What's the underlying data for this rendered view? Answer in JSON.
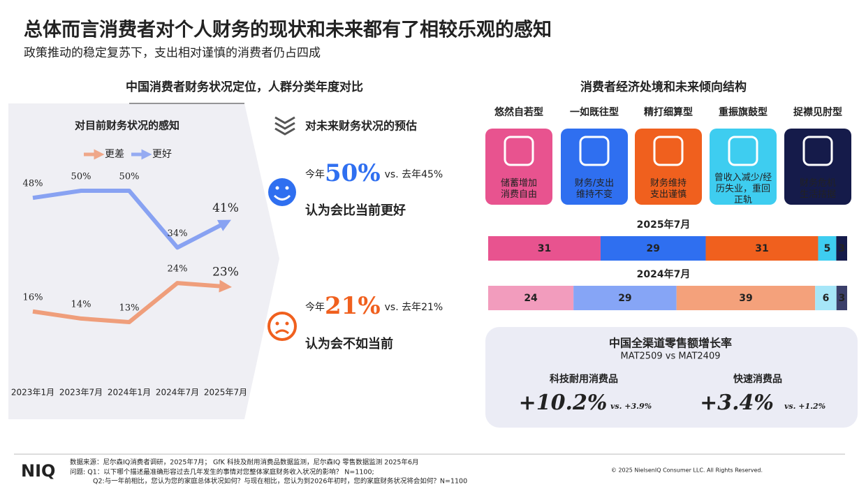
{
  "header": {
    "title": "总体而言消费者对个人财务的现状和未来都有了相较乐观的感知",
    "subtitle": "政策推动的稳定复苏下，支出相对谨慎的消费者仍占四成"
  },
  "left_title": "中国消费者财务状况定位，人群分类年度对比",
  "chart_data": [
    {
      "type": "line",
      "title": "对目前财务状况的感知",
      "categories": [
        "2023年1月",
        "2023年7月",
        "2024年1月",
        "2024年7月",
        "2025年7月"
      ],
      "series": [
        {
          "name": "更差",
          "color": "#f08a5d",
          "values": [
            16,
            14,
            13,
            24,
            23
          ],
          "value_labels": [
            "16%",
            "14%",
            "13%",
            "24%",
            "23%"
          ]
        },
        {
          "name": "更好",
          "color": "#6f8ff2",
          "values": [
            48,
            50,
            50,
            34,
            41
          ],
          "value_labels": [
            "48%",
            "50%",
            "50%",
            "34%",
            "41%"
          ]
        }
      ]
    },
    {
      "type": "stacked-bar",
      "title": "消费者经济处境和未来倾向结构",
      "categories": [
        "2025年7月",
        "2024年7月"
      ],
      "series": [
        {
          "name": "悠然自若型",
          "colors": [
            "#e8538f",
            "#f29cbd"
          ],
          "values": [
            31,
            24
          ]
        },
        {
          "name": "一如既往型",
          "colors": [
            "#2f6ff0",
            "#86a5f6"
          ],
          "values": [
            29,
            29
          ]
        },
        {
          "name": "精打细算型",
          "colors": [
            "#f0601e",
            "#f4a17b"
          ],
          "values": [
            31,
            39
          ]
        },
        {
          "name": "重振旗鼓型",
          "colors": [
            "#3ecdf0",
            "#a6e6f8"
          ],
          "values": [
            5,
            6
          ]
        },
        {
          "name": "捉襟见肘型",
          "colors": [
            "#151b4a",
            "#3b3f6a"
          ],
          "values": [
            3,
            3
          ]
        }
      ]
    }
  ],
  "types_desc": [
    "储蓄增加\n消费自由",
    "财务/支出\n维持不变",
    "财务维持\n支出谨慎",
    "曾收入减少/经\n历失业，重回\n正轨",
    "财务危机\n生活拮据"
  ],
  "future": {
    "title": "对未来财务状况的预估",
    "items": [
      {
        "prefix": "今年",
        "value": "50%",
        "compare": "vs. 去年45%",
        "text": "认为会比当前更好"
      },
      {
        "prefix": "今年",
        "value": "21%",
        "compare": "vs. 去年21%",
        "text": "认为会不如当前"
      }
    ]
  },
  "retail": {
    "title": "中国全渠道零售额增长率",
    "subtitle": "MAT2509 vs MAT2409",
    "items": [
      {
        "label": "科技耐用消费品",
        "value": "+10.2%",
        "compare": "vs. +3.9%"
      },
      {
        "label": "快速消费品",
        "value": "+3.4%",
        "compare": "vs. +1.2%"
      }
    ]
  },
  "footer": {
    "logo": "NIQ",
    "source": [
      "数据来源：尼尔森IQ消费者调研，2025年7月； GfK 科技及耐用消费品数据监测，尼尔森IQ 零售数据监测  2025年6月",
      "问题:   Q1：以下哪个描述最准确形容过去几年发生的事情对您整体家庭财务收入状况的影响？ N=1100;",
      "Q2:与一年前相比，您认为您的家庭总体状况如何？与现在相比，您认为到2026年初时，您的家庭财务状况将会如何？N=1100"
    ],
    "copyright": "© 2025 NielsenIQ Consumer LLC. All Rights Reserved."
  }
}
